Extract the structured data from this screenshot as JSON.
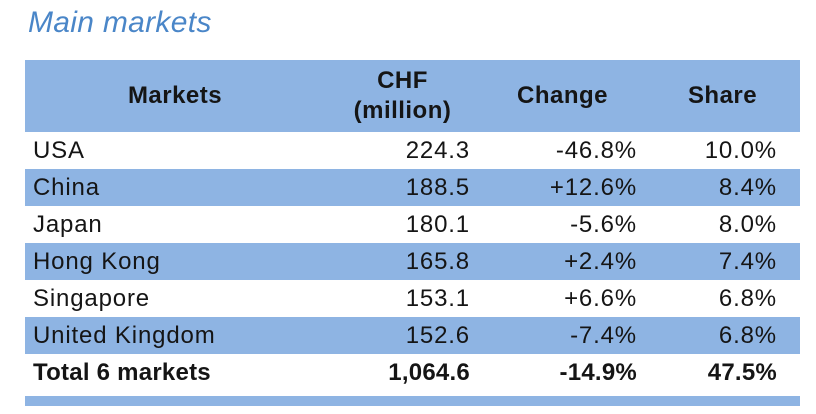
{
  "title": "Main markets",
  "colors": {
    "title_blue": "#4a86c8",
    "band_blue": "#8eb4e3",
    "text": "#151515"
  },
  "table": {
    "columns": [
      {
        "label": "Markets"
      },
      {
        "label": "CHF",
        "sublabel": "(million)"
      },
      {
        "label": "Change"
      },
      {
        "label": "Share"
      }
    ],
    "rows": [
      {
        "market": "USA",
        "chf": "224.3",
        "change": "-46.8%",
        "share": "10.0%"
      },
      {
        "market": "China",
        "chf": "188.5",
        "change": "+12.6%",
        "share": "8.4%"
      },
      {
        "market": "Japan",
        "chf": "180.1",
        "change": "-5.6%",
        "share": "8.0%"
      },
      {
        "market": "Hong Kong",
        "chf": "165.8",
        "change": "+2.4%",
        "share": "7.4%"
      },
      {
        "market": "Singapore",
        "chf": "153.1",
        "change": "+6.6%",
        "share": "6.8%"
      },
      {
        "market": "United Kingdom",
        "chf": "152.6",
        "change": "-7.4%",
        "share": "6.8%"
      }
    ],
    "total_row": {
      "market": "Total 6 markets",
      "chf": "1,064.6",
      "change": "-14.9%",
      "share": "47.5%"
    }
  }
}
